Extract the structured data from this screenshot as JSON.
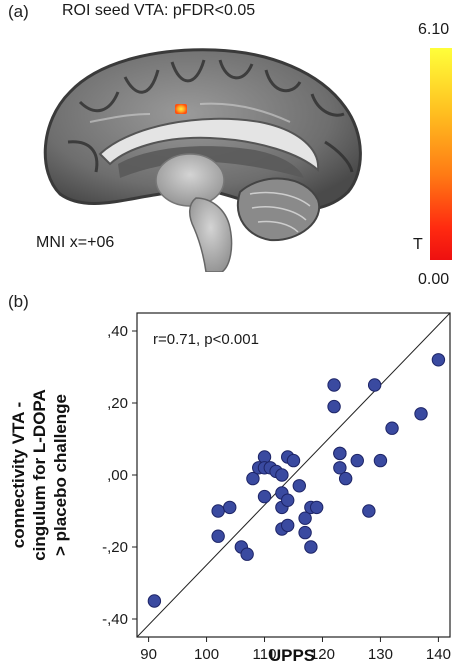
{
  "panel_a": {
    "label": "(a)",
    "title": "ROI seed VTA: pFDR<0.05",
    "slice_label": "MNI x=+06",
    "colorbar": {
      "max": "6.10",
      "min": "0.00",
      "symbol": "T",
      "colors": [
        "#ffff3a",
        "#ffc020",
        "#ff7a14",
        "#ff2a10",
        "#ee1010"
      ]
    }
  },
  "panel_b": {
    "label": "(b)"
  },
  "chart_data": {
    "type": "scatter",
    "title": "",
    "xlabel": "UPPS",
    "ylabel_lines": [
      "connectivity VTA -",
      "cingulum for L-DOPA",
      "> placebo challenge"
    ],
    "annotation": "r=0.71, p<0.001",
    "xlim": [
      88,
      142
    ],
    "ylim": [
      -0.45,
      0.45
    ],
    "x_ticks": [
      90,
      100,
      110,
      120,
      130,
      140
    ],
    "x_tick_labels": [
      "90",
      "100",
      "110",
      "120",
      "130",
      "140"
    ],
    "y_ticks": [
      0.4,
      0.2,
      0.0,
      -0.2,
      -0.4
    ],
    "y_tick_labels": [
      ",40",
      ",20",
      ",00",
      "-,20",
      "-,40"
    ],
    "grid": false,
    "point_color": "#3a4aa0",
    "reference_line": {
      "from": [
        88,
        -0.45
      ],
      "to": [
        142,
        0.45
      ]
    },
    "points": [
      {
        "x": 91,
        "y": -0.35
      },
      {
        "x": 102,
        "y": -0.1
      },
      {
        "x": 102,
        "y": -0.17
      },
      {
        "x": 104,
        "y": -0.09
      },
      {
        "x": 106,
        "y": -0.2
      },
      {
        "x": 107,
        "y": -0.22
      },
      {
        "x": 108,
        "y": -0.01
      },
      {
        "x": 109,
        "y": 0.02
      },
      {
        "x": 110,
        "y": 0.05
      },
      {
        "x": 110,
        "y": 0.02
      },
      {
        "x": 110,
        "y": -0.06
      },
      {
        "x": 111,
        "y": 0.02
      },
      {
        "x": 112,
        "y": 0.01
      },
      {
        "x": 113,
        "y": 0.0
      },
      {
        "x": 113,
        "y": -0.05
      },
      {
        "x": 113,
        "y": -0.09
      },
      {
        "x": 113,
        "y": -0.15
      },
      {
        "x": 114,
        "y": 0.05
      },
      {
        "x": 114,
        "y": -0.07
      },
      {
        "x": 114,
        "y": -0.14
      },
      {
        "x": 115,
        "y": 0.04
      },
      {
        "x": 116,
        "y": -0.03
      },
      {
        "x": 117,
        "y": -0.12
      },
      {
        "x": 117,
        "y": -0.16
      },
      {
        "x": 118,
        "y": -0.09
      },
      {
        "x": 118,
        "y": -0.2
      },
      {
        "x": 119,
        "y": -0.09
      },
      {
        "x": 122,
        "y": 0.19
      },
      {
        "x": 122,
        "y": 0.25
      },
      {
        "x": 123,
        "y": 0.06
      },
      {
        "x": 123,
        "y": 0.02
      },
      {
        "x": 123,
        "y": 0.06
      },
      {
        "x": 124,
        "y": -0.01
      },
      {
        "x": 126,
        "y": 0.04
      },
      {
        "x": 128,
        "y": -0.1
      },
      {
        "x": 129,
        "y": 0.25
      },
      {
        "x": 130,
        "y": 0.04
      },
      {
        "x": 132,
        "y": 0.13
      },
      {
        "x": 137,
        "y": 0.17
      },
      {
        "x": 140,
        "y": 0.32
      }
    ]
  }
}
